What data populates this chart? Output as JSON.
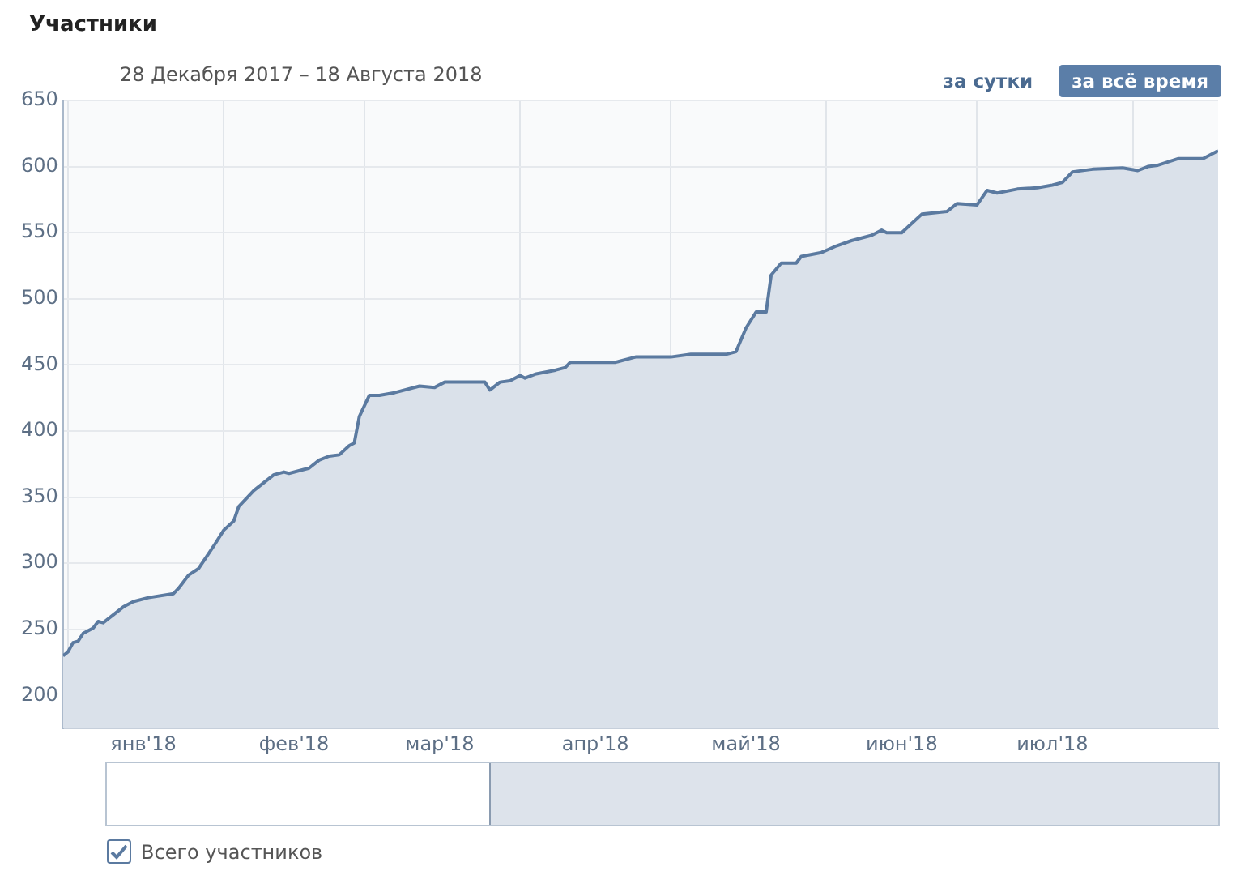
{
  "chart_data": {
    "type": "area",
    "title": "Участники",
    "subtitle": "28 Декабря 2017 – 18 Августа 2018",
    "annotations": [
      "за сутки",
      "за всё время"
    ],
    "x": [
      "2017-12-31",
      "2018-01-01",
      "2018-01-02",
      "2018-01-03",
      "2018-01-04",
      "2018-01-06",
      "2018-01-07",
      "2018-01-08",
      "2018-01-10",
      "2018-01-12",
      "2018-01-14",
      "2018-01-17",
      "2018-01-22",
      "2018-01-23",
      "2018-01-25",
      "2018-01-27",
      "2018-01-30",
      "2018-02-01",
      "2018-02-03",
      "2018-02-04",
      "2018-02-07",
      "2018-02-11",
      "2018-02-13",
      "2018-02-14",
      "2018-02-18",
      "2018-02-20",
      "2018-02-22",
      "2018-02-24",
      "2018-02-26",
      "2018-02-27",
      "2018-02-28",
      "2018-03-02",
      "2018-03-04",
      "2018-03-07",
      "2018-03-12",
      "2018-03-15",
      "2018-03-17",
      "2018-03-25",
      "2018-03-26",
      "2018-03-28",
      "2018-03-30",
      "2018-04-01",
      "2018-04-02",
      "2018-04-04",
      "2018-04-08",
      "2018-04-10",
      "2018-04-11",
      "2018-04-16",
      "2018-04-20",
      "2018-04-24",
      "2018-04-27",
      "2018-05-01",
      "2018-05-05",
      "2018-05-12",
      "2018-05-14",
      "2018-05-16",
      "2018-05-18",
      "2018-05-20",
      "2018-05-21",
      "2018-05-23",
      "2018-05-26",
      "2018-05-27",
      "2018-05-31",
      "2018-06-03",
      "2018-06-06",
      "2018-06-10",
      "2018-06-12",
      "2018-06-13",
      "2018-06-16",
      "2018-06-18",
      "2018-06-20",
      "2018-06-25",
      "2018-06-27",
      "2018-07-01",
      "2018-07-03",
      "2018-07-05",
      "2018-07-09",
      "2018-07-13",
      "2018-07-16",
      "2018-07-18",
      "2018-07-20",
      "2018-07-24",
      "2018-07-30",
      "2018-08-02",
      "2018-08-04",
      "2018-08-06",
      "2018-08-10",
      "2018-08-15",
      "2018-08-18"
    ],
    "series": [
      {
        "name": "Всего участников",
        "color": "#5b7aa0",
        "values": [
          230,
          233,
          240,
          241,
          247,
          251,
          256,
          255,
          261,
          267,
          271,
          274,
          277,
          281,
          291,
          296,
          313,
          325,
          332,
          343,
          355,
          367,
          369,
          368,
          372,
          378,
          381,
          382,
          389,
          391,
          411,
          427,
          427,
          429,
          434,
          433,
          437,
          437,
          431,
          437,
          438,
          442,
          440,
          443,
          446,
          448,
          452,
          452,
          452,
          456,
          456,
          456,
          458,
          458,
          460,
          478,
          490,
          490,
          518,
          527,
          527,
          532,
          535,
          540,
          544,
          548,
          552,
          550,
          550,
          557,
          564,
          566,
          572,
          571,
          582,
          580,
          583,
          584,
          586,
          588,
          596,
          598,
          599,
          597,
          600,
          601,
          606,
          606,
          612
        ]
      }
    ],
    "xlim": [
      "2017-12-31",
      "2018-08-18"
    ],
    "xticks": [
      {
        "value": "2018-01-01",
        "label": null
      },
      {
        "value": "2018-01-16",
        "label": "янв'18"
      },
      {
        "value": "2018-02-01",
        "label": null
      },
      {
        "value": "2018-02-15",
        "label": "фев'18"
      },
      {
        "value": "2018-03-01",
        "label": null
      },
      {
        "value": "2018-03-16",
        "label": "мар'18"
      },
      {
        "value": "2018-04-01",
        "label": null
      },
      {
        "value": "2018-04-16",
        "label": "апр'18"
      },
      {
        "value": "2018-05-01",
        "label": null
      },
      {
        "value": "2018-05-16",
        "label": "май'18"
      },
      {
        "value": "2018-06-01",
        "label": null
      },
      {
        "value": "2018-06-16",
        "label": "июн'18"
      },
      {
        "value": "2018-07-01",
        "label": null
      },
      {
        "value": "2018-07-16",
        "label": "июл'18"
      },
      {
        "value": "2018-08-01",
        "label": null
      }
    ],
    "ylim": [
      175,
      650
    ],
    "yticks": [
      200,
      250,
      300,
      350,
      400,
      450,
      500,
      550,
      600,
      650
    ],
    "grid": true,
    "legend": "bottom left",
    "marker": "none",
    "line_style": "solid"
  }
}
